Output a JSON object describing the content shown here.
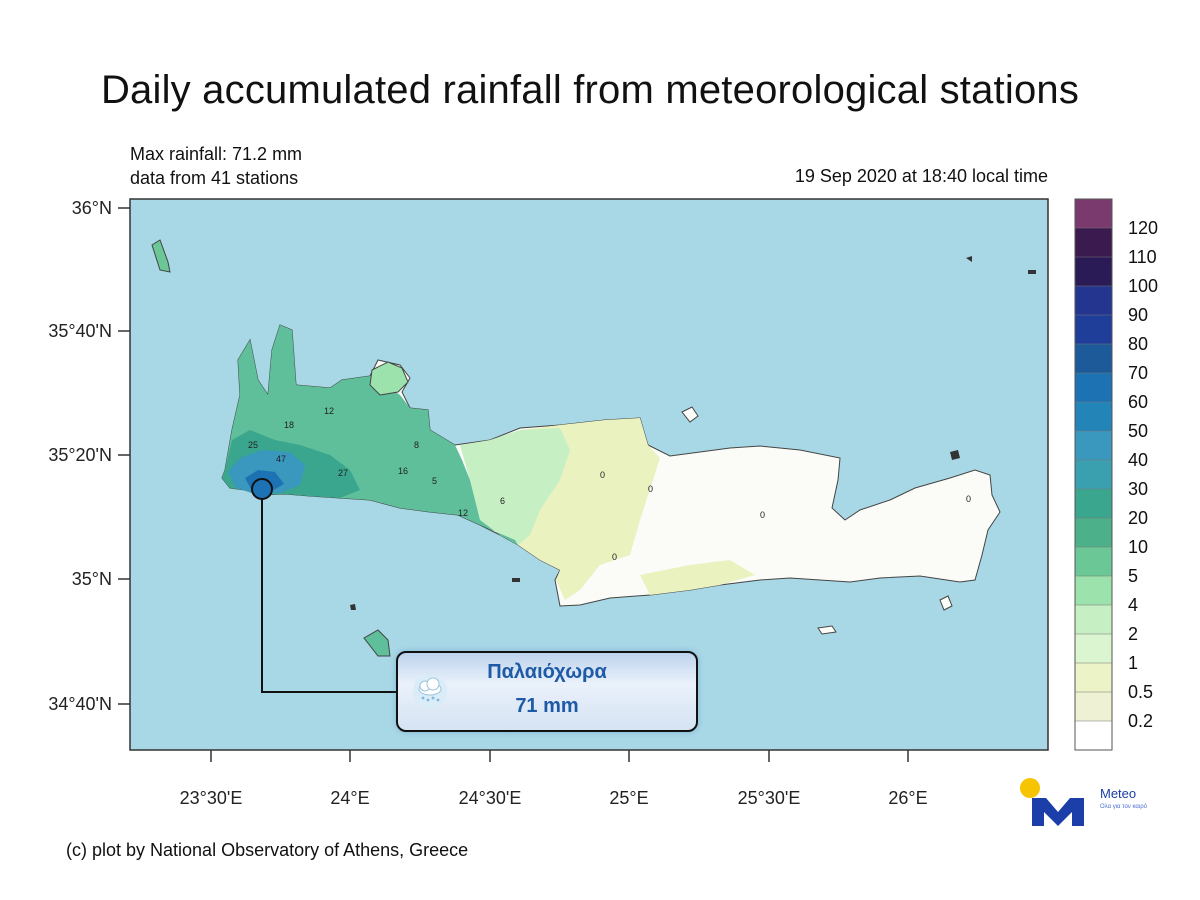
{
  "title": "Daily accumulated rainfall from meteorological stations",
  "info": {
    "max_rainfall": "Max rainfall: 71.2 mm",
    "station_count": "data from 41 stations"
  },
  "timestamp": "19 Sep 2020 at 18:40 local time",
  "credit": "(c) plot by National Observatory of Athens, Greece",
  "map": {
    "lat_labels": [
      "36°N",
      "35°40'N",
      "35°20'N",
      "35°N",
      "34°40'N"
    ],
    "lon_labels": [
      "23°30'E",
      "24°E",
      "24°30'E",
      "25°E",
      "25°30'E",
      "26°E"
    ],
    "sea_color": "#a8d8e6",
    "station_values": [
      "25",
      "47",
      "27",
      "16",
      "5",
      "12",
      "18",
      "8",
      "0",
      "0",
      "0",
      "0",
      "0",
      "6",
      "12"
    ]
  },
  "colorbar": {
    "labels": [
      "120",
      "110",
      "100",
      "90",
      "80",
      "70",
      "60",
      "50",
      "40",
      "30",
      "20",
      "10",
      "5",
      "4",
      "2",
      "1",
      "0.5",
      "0.2"
    ],
    "colors": [
      "#7a3a6e",
      "#3b1a4f",
      "#2a1a55",
      "#24358f",
      "#1f3e9a",
      "#1d5a99",
      "#1c72b3",
      "#2384b8",
      "#3a97bd",
      "#3aa0b0",
      "#3aa68e",
      "#4cb08a",
      "#6cc796",
      "#9be2ac",
      "#c6efc4",
      "#daf5cf",
      "#ecf3c6",
      "#eef1d4",
      "#ffffff"
    ]
  },
  "callout": {
    "location": "Παλαιόχωρα",
    "value": "71 mm",
    "icon": "rain-cloud-icon"
  },
  "logo": {
    "name": "Meteo",
    "tagline": "Ολα για τον καιρό"
  }
}
